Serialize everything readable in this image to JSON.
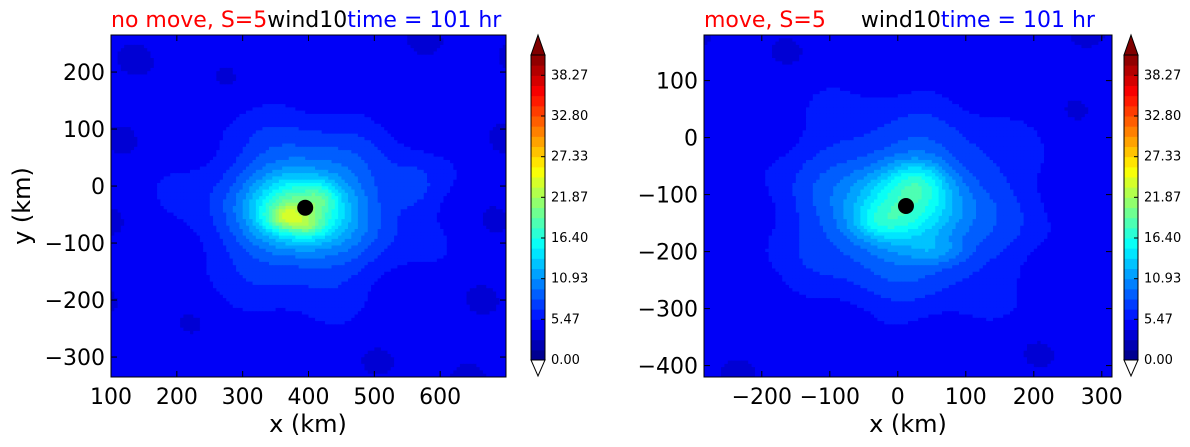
{
  "chart_data": [
    {
      "type": "contourf",
      "title_parts": [
        {
          "text": "no move, S=5",
          "color": "#ff0000"
        },
        {
          "text": "wind10",
          "color": "#000000"
        },
        {
          "text": "time = 101 hr",
          "color": "#0000ff"
        }
      ],
      "xlabel": "x (km)",
      "ylabel": "y (km)",
      "xlim": [
        100,
        700
      ],
      "ylim": [
        -335,
        265
      ],
      "xticks": [
        100,
        200,
        300,
        400,
        500,
        600
      ],
      "xtick_labels": [
        "100",
        "200",
        "300",
        "400",
        "500",
        "600"
      ],
      "yticks": [
        -300,
        -200,
        -100,
        0,
        100,
        200
      ],
      "ytick_labels": [
        "−300",
        "−200",
        "−100",
        "0",
        "100",
        "200"
      ],
      "center": {
        "x": 395,
        "y": -38
      },
      "colorbar": {
        "min": 0,
        "max": 41,
        "extend": "both",
        "tick_values": [
          0,
          5.47,
          10.93,
          16.4,
          21.87,
          27.33,
          32.8,
          38.27
        ],
        "tick_labels": [
          "0.00",
          "5.47",
          "10.93",
          "16.40",
          "21.87",
          "27.33",
          "32.80",
          "38.27"
        ]
      },
      "field": {
        "background": 4.5,
        "blobs": [
          {
            "x": 395,
            "y": -40,
            "sx": 95,
            "sy": 90,
            "amp": 7.5
          },
          {
            "x": 385,
            "y": -40,
            "sx": 45,
            "sy": 40,
            "amp": 8.5
          },
          {
            "x": 365,
            "y": -55,
            "sx": 20,
            "sy": 14,
            "amp": 5.0
          },
          {
            "x": 400,
            "y": -70,
            "sx": 18,
            "sy": 12,
            "amp": 3.0
          },
          {
            "x": 420,
            "y": -20,
            "sx": 16,
            "sy": 16,
            "amp": 2.5
          },
          {
            "x": 560,
            "y": 0,
            "sx": 25,
            "sy": 30,
            "amp": 2.0
          }
        ]
      }
    },
    {
      "type": "contourf",
      "title_parts": [
        {
          "text": "move, S=5",
          "color": "#ff0000"
        },
        {
          "text": "wind10",
          "color": "#000000"
        },
        {
          "text": "time = 101 hr",
          "color": "#0000ff"
        }
      ],
      "xlabel": "x (km)",
      "ylabel": "",
      "xlim": [
        -285,
        315
      ],
      "ylim": [
        -420,
        180
      ],
      "xticks": [
        -200,
        -100,
        0,
        100,
        200,
        300
      ],
      "xtick_labels": [
        "−200",
        "−100",
        "0",
        "100",
        "200",
        "300"
      ],
      "yticks": [
        -400,
        -300,
        -200,
        -100,
        0,
        100
      ],
      "ytick_labels": [
        "−400",
        "−300",
        "−200",
        "−100",
        "0",
        "100"
      ],
      "center": {
        "x": 12,
        "y": -120
      },
      "colorbar": {
        "min": 0,
        "max": 41,
        "extend": "both",
        "tick_values": [
          0,
          5.47,
          10.93,
          16.4,
          21.87,
          27.33,
          32.8,
          38.27
        ],
        "tick_labels": [
          "0.00",
          "5.47",
          "10.93",
          "16.40",
          "21.87",
          "27.33",
          "32.80",
          "38.27"
        ]
      },
      "field": {
        "background": 4.5,
        "blobs": [
          {
            "x": 10,
            "y": -125,
            "sx": 110,
            "sy": 105,
            "amp": 6.5
          },
          {
            "x": 10,
            "y": -120,
            "sx": 55,
            "sy": 45,
            "amp": 5.5
          },
          {
            "x": 30,
            "y": -75,
            "sx": 30,
            "sy": 25,
            "amp": 3.5
          },
          {
            "x": -30,
            "y": -150,
            "sx": 30,
            "sy": 22,
            "amp": 3.0
          },
          {
            "x": 60,
            "y": -200,
            "sx": 30,
            "sy": 18,
            "amp": 2.5
          }
        ]
      }
    }
  ]
}
